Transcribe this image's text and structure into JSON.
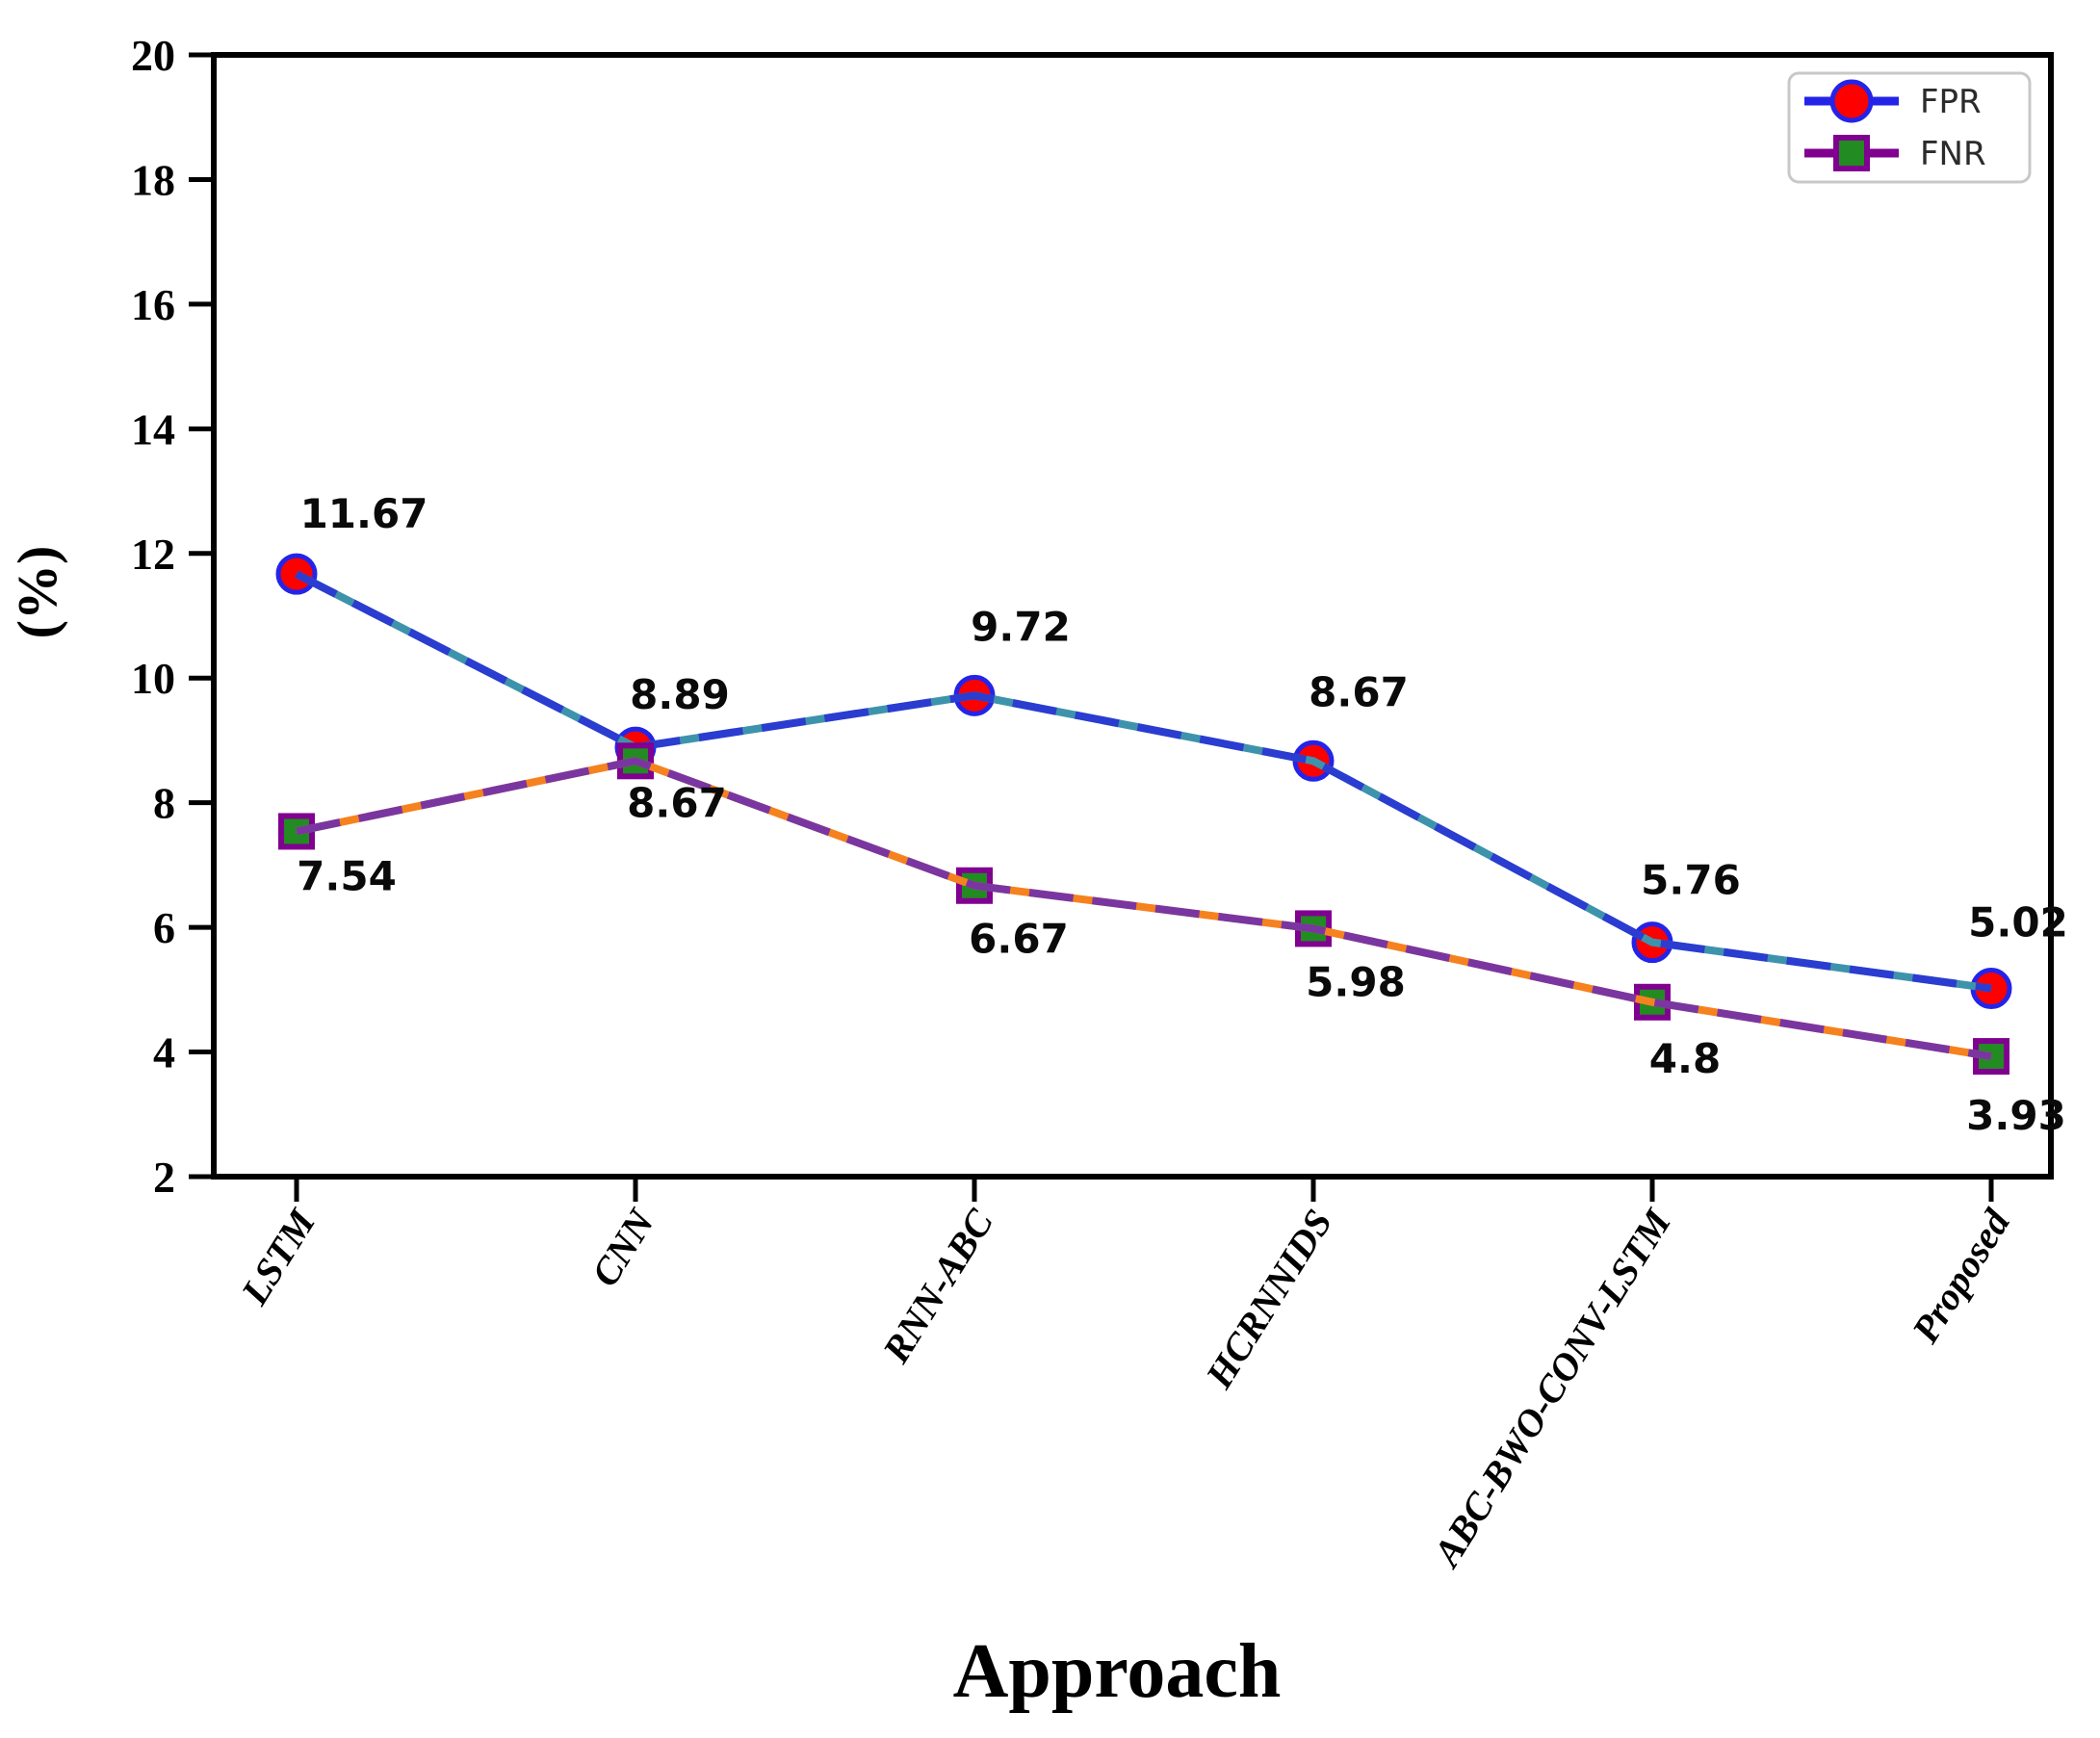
{
  "chart_data": {
    "type": "line",
    "title": "",
    "xlabel": "Approach",
    "ylabel": "(%)",
    "categories": [
      "LSTM",
      "CNN",
      "RNN-ABC",
      "HCRNNIDS",
      "ABC-BWO-CONV-LSTM",
      "Proposed"
    ],
    "series": [
      {
        "name": "FPR",
        "values": [
          11.67,
          8.89,
          9.72,
          8.67,
          5.76,
          5.02
        ],
        "marker": "circle",
        "marker_fill": "#ff0000",
        "marker_edge": "#2424e8",
        "line_solid_color": "#3e93ac",
        "line_dash_color": "#2b3cd0",
        "legend_handle_color": "#2424e8"
      },
      {
        "name": "FNR",
        "values": [
          7.54,
          8.67,
          6.67,
          5.98,
          4.8,
          3.93
        ],
        "marker": "square",
        "marker_fill": "#228b22",
        "marker_edge": "#800090",
        "line_solid_color": "#f5821f",
        "line_dash_color": "#7a36a0",
        "legend_handle_color": "#800090"
      }
    ],
    "ylim": [
      2,
      20
    ],
    "yticks": [
      2,
      4,
      6,
      8,
      10,
      12,
      14,
      16,
      18,
      20
    ],
    "line_style": "dashed-over-solid",
    "grid": false,
    "legend_position": "upper-right",
    "axis_color": "#000000",
    "background": "#ffffff",
    "value_label_color": "#0a0a0a"
  }
}
